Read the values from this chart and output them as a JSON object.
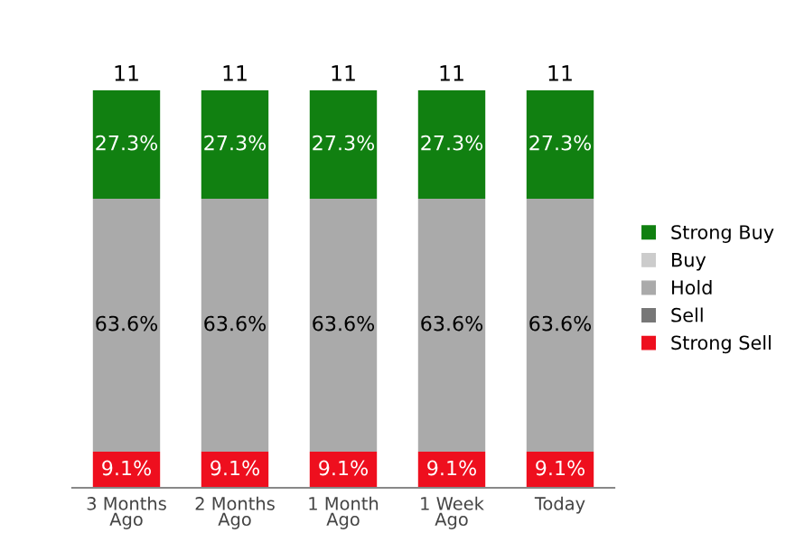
{
  "chart_data": {
    "type": "bar",
    "stacked": true,
    "categories": [
      "3 Months\nAgo",
      "2 Months\nAgo",
      "1 Month\nAgo",
      "1 Week\nAgo",
      "Today"
    ],
    "series": [
      {
        "name": "Strong Sell",
        "color": "#ee0f1e",
        "values": [
          9.1,
          9.1,
          9.1,
          9.1,
          9.1
        ],
        "value_labels": [
          "9.1%",
          "9.1%",
          "9.1%",
          "9.1%",
          "9.1%"
        ]
      },
      {
        "name": "Sell",
        "color": "#777777",
        "values": [
          null,
          null,
          null,
          null,
          null
        ]
      },
      {
        "name": "Hold",
        "color": "#aaaaaa",
        "values": [
          63.6,
          63.6,
          63.6,
          63.6,
          63.6
        ],
        "value_labels": [
          "63.6%",
          "63.6%",
          "63.6%",
          "63.6%",
          "63.6%"
        ]
      },
      {
        "name": "Buy",
        "color": "#cccccc",
        "values": [
          null,
          null,
          null,
          null,
          null
        ]
      },
      {
        "name": "Strong Buy",
        "color": "#118011",
        "values": [
          27.3,
          27.3,
          27.3,
          27.3,
          27.3
        ],
        "value_labels": [
          "27.3%",
          "27.3%",
          "27.3%",
          "27.3%",
          "27.3%"
        ]
      }
    ],
    "annotations": [
      {
        "text": "11",
        "x": "3 Months\nAgo",
        "y": 100
      },
      {
        "text": "11",
        "x": "2 Months\nAgo",
        "y": 100
      },
      {
        "text": "11",
        "x": "1 Month\nAgo",
        "y": 100
      },
      {
        "text": "11",
        "x": "1 Week\nAgo",
        "y": 100
      },
      {
        "text": "11",
        "x": "Today",
        "y": 100
      }
    ],
    "legend": "right",
    "grid": false
  }
}
